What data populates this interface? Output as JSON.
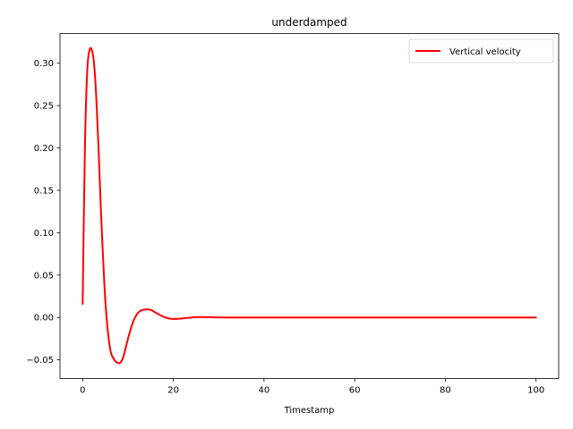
{
  "chart_data": {
    "type": "line",
    "title": "underdamped",
    "xlabel": "Timestamp",
    "ylabel": "",
    "xlim": [
      -5,
      105
    ],
    "ylim": [
      -0.072,
      0.335
    ],
    "xticks": [
      0,
      20,
      40,
      60,
      80,
      100
    ],
    "xtick_labels": [
      "0",
      "20",
      "40",
      "60",
      "80",
      "100"
    ],
    "yticks": [
      -0.05,
      0.0,
      0.05,
      0.1,
      0.15,
      0.2,
      0.25,
      0.3
    ],
    "ytick_labels": [
      "−0.05",
      "0.00",
      "0.05",
      "0.10",
      "0.15",
      "0.20",
      "0.25",
      "0.30"
    ],
    "grid": false,
    "legend_position": "top-right",
    "series": [
      {
        "name": "Vertical velocity",
        "color": "#ff0000",
        "x": [
          0,
          0.5,
          1,
          1.5,
          2,
          2.5,
          3,
          3.5,
          4,
          5,
          6,
          7,
          8,
          8.5,
          9,
          10,
          11,
          12,
          13,
          14,
          15,
          16,
          17,
          18,
          19,
          20,
          22,
          24,
          26,
          28,
          30,
          33,
          36,
          40,
          50,
          60,
          70,
          80,
          90,
          100
        ],
        "y": [
          0.016,
          0.2,
          0.29,
          0.315,
          0.316,
          0.3,
          0.26,
          0.2,
          0.13,
          0.02,
          -0.035,
          -0.05,
          -0.054,
          -0.052,
          -0.046,
          -0.025,
          -0.007,
          0.004,
          0.0085,
          0.0095,
          0.009,
          0.006,
          0.003,
          0.0005,
          -0.0012,
          -0.0018,
          -0.0011,
          0.0,
          0.0005,
          0.0004,
          0.0001,
          -0.0001,
          0.0,
          0.0,
          0.0,
          0.0,
          0.0,
          0.0,
          0.0,
          0.0
        ]
      }
    ]
  }
}
